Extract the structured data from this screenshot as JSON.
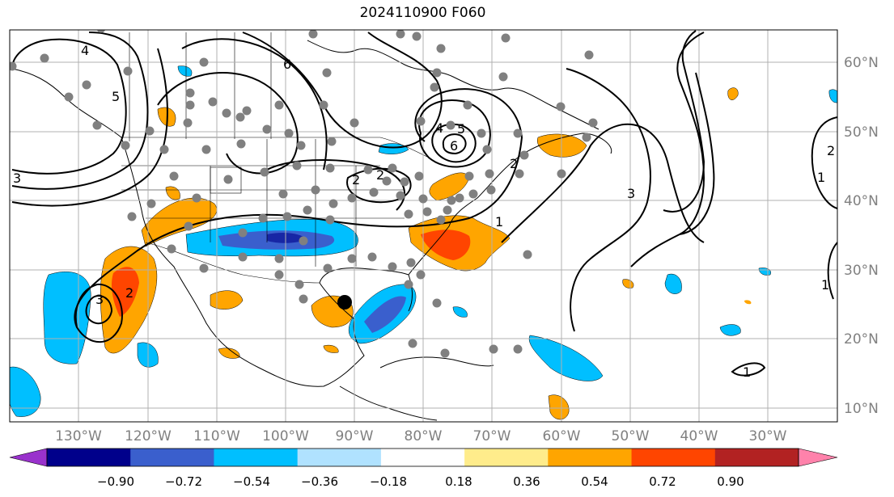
{
  "title": "2024110900 F060",
  "map": {
    "lon_ticks": [
      "130°W",
      "120°W",
      "110°W",
      "100°W",
      "90°W",
      "80°W",
      "70°W",
      "60°W",
      "50°W",
      "40°W",
      "30°W"
    ],
    "lat_ticks": [
      "60°N",
      "50°N",
      "40°N",
      "30°N",
      "20°N",
      "10°N"
    ]
  },
  "contour_labels": [
    "4",
    "5",
    "6",
    "2",
    "3",
    "2",
    "4",
    "5",
    "6",
    "2",
    "1",
    "3",
    "2",
    "1",
    "1",
    "3",
    "2",
    "1"
  ],
  "colorbar": {
    "tick_labels": [
      "−0.90",
      "−0.72",
      "−0.54",
      "−0.36",
      "−0.18",
      "0.18",
      "0.36",
      "0.54",
      "0.72",
      "0.90"
    ],
    "colors": [
      "#9932cc",
      "#00008b",
      "#3a5fcd",
      "#00bfff",
      "#b0e2ff",
      "#ffffff",
      "#ffec8b",
      "#ffa500",
      "#ff4500",
      "#b22222",
      "#ff82ab"
    ]
  },
  "colors": {
    "station": "#808080",
    "marker": "#000000",
    "grid": "#b0b0b0"
  }
}
